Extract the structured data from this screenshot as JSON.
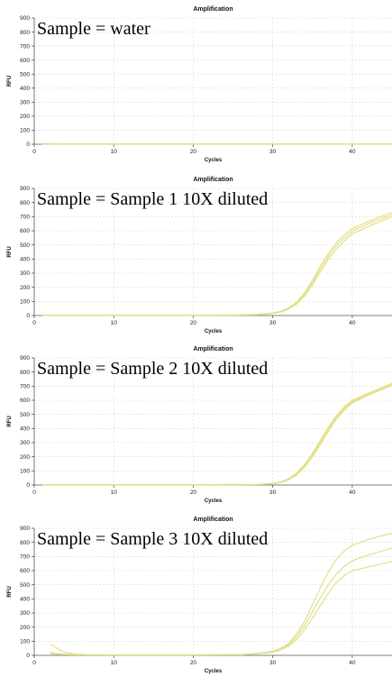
{
  "chart_data": [
    {
      "type": "line",
      "title": "Amplification",
      "annotation": "Sample = water",
      "xlabel": "Cycles",
      "ylabel": "RFU",
      "xlim": [
        0,
        45
      ],
      "ylim": [
        0,
        900
      ],
      "xticks": [
        0,
        10,
        20,
        30,
        40
      ],
      "yticks": [
        0,
        100,
        200,
        300,
        400,
        500,
        600,
        700,
        800,
        900
      ],
      "grid": true,
      "line_color": "#e2e08a",
      "series": [
        {
          "x": [
            1,
            5,
            10,
            15,
            20,
            25,
            30,
            35,
            40,
            45
          ],
          "y": [
            2,
            2,
            2,
            2,
            2,
            2,
            2,
            2,
            2,
            2
          ]
        },
        {
          "x": [
            1,
            5,
            10,
            15,
            20,
            25,
            30,
            35,
            40,
            45
          ],
          "y": [
            4,
            3,
            3,
            3,
            3,
            3,
            3,
            3,
            3,
            3
          ]
        },
        {
          "x": [
            1,
            5,
            10,
            15,
            20,
            25,
            30,
            35,
            40,
            45
          ],
          "y": [
            1,
            1,
            1,
            1,
            1,
            1,
            1,
            1,
            1,
            1
          ]
        }
      ]
    },
    {
      "type": "line",
      "title": "Amplification",
      "annotation": "Sample = Sample 1 10X diluted",
      "xlabel": "Cycles",
      "ylabel": "RFU",
      "xlim": [
        0,
        45
      ],
      "ylim": [
        0,
        900
      ],
      "xticks": [
        0,
        10,
        20,
        30,
        40
      ],
      "yticks": [
        0,
        100,
        200,
        300,
        400,
        500,
        600,
        700,
        800,
        900
      ],
      "grid": true,
      "line_color": "#e2e08a",
      "series": [
        {
          "x": [
            1,
            10,
            20,
            26,
            28,
            30,
            31,
            32,
            33,
            34,
            35,
            36,
            37,
            38,
            39,
            40,
            42,
            45
          ],
          "y": [
            2,
            2,
            2,
            4,
            8,
            18,
            30,
            55,
            95,
            160,
            250,
            350,
            440,
            515,
            570,
            615,
            665,
            730
          ]
        },
        {
          "x": [
            1,
            10,
            20,
            26,
            28,
            30,
            31,
            32,
            33,
            34,
            35,
            36,
            37,
            38,
            39,
            40,
            42,
            45
          ],
          "y": [
            2,
            2,
            2,
            4,
            7,
            16,
            27,
            50,
            88,
            150,
            235,
            330,
            420,
            495,
            550,
            598,
            650,
            715
          ]
        },
        {
          "x": [
            1,
            10,
            20,
            26,
            28,
            30,
            31,
            32,
            33,
            34,
            35,
            36,
            37,
            38,
            39,
            40,
            42,
            45
          ],
          "y": [
            2,
            2,
            2,
            3,
            6,
            14,
            24,
            45,
            80,
            138,
            218,
            308,
            398,
            472,
            528,
            578,
            630,
            700
          ]
        }
      ]
    },
    {
      "type": "line",
      "title": "Amplification",
      "annotation": "Sample = Sample 2 10X diluted",
      "xlabel": "Cycles",
      "ylabel": "RFU",
      "xlim": [
        0,
        45
      ],
      "ylim": [
        0,
        900
      ],
      "xticks": [
        0,
        10,
        20,
        30,
        40
      ],
      "yticks": [
        0,
        100,
        200,
        300,
        400,
        500,
        600,
        700,
        800,
        900
      ],
      "grid": true,
      "line_color": "#e2e08a",
      "series": [
        {
          "x": [
            1,
            10,
            20,
            28,
            30,
            31,
            32,
            33,
            34,
            35,
            36,
            37,
            38,
            39,
            40,
            42,
            45
          ],
          "y": [
            2,
            2,
            2,
            4,
            10,
            22,
            45,
            85,
            145,
            225,
            315,
            410,
            490,
            555,
            600,
            650,
            720
          ]
        },
        {
          "x": [
            1,
            10,
            20,
            28,
            30,
            31,
            32,
            33,
            34,
            35,
            36,
            37,
            38,
            39,
            40,
            42,
            45
          ],
          "y": [
            2,
            2,
            2,
            4,
            9,
            20,
            40,
            78,
            135,
            212,
            300,
            395,
            478,
            542,
            590,
            642,
            712
          ]
        },
        {
          "x": [
            1,
            10,
            20,
            28,
            30,
            31,
            32,
            33,
            34,
            35,
            36,
            37,
            38,
            39,
            40,
            42,
            45
          ],
          "y": [
            2,
            2,
            2,
            3,
            8,
            18,
            36,
            70,
            125,
            200,
            287,
            380,
            465,
            530,
            580,
            635,
            705
          ]
        }
      ]
    },
    {
      "type": "line",
      "title": "Amplification",
      "annotation": "Sample = Sample 3 10X diluted",
      "xlabel": "Cycles",
      "ylabel": "RFU",
      "xlim": [
        0,
        45
      ],
      "ylim": [
        0,
        900
      ],
      "xticks": [
        0,
        10,
        20,
        30,
        40
      ],
      "yticks": [
        0,
        100,
        200,
        300,
        400,
        500,
        600,
        700,
        800,
        900
      ],
      "grid": true,
      "line_color": "#e2e08a",
      "series": [
        {
          "x": [
            2,
            2.5,
            3,
            3.5,
            4,
            5,
            7,
            10,
            20,
            26,
            28,
            30,
            31,
            32,
            33,
            34,
            35,
            36,
            37,
            38,
            39,
            40,
            42,
            45
          ],
          "y": [
            80,
            65,
            45,
            30,
            20,
            10,
            4,
            3,
            3,
            6,
            14,
            30,
            50,
            85,
            150,
            240,
            360,
            480,
            590,
            680,
            740,
            780,
            820,
            865
          ]
        },
        {
          "x": [
            2,
            3,
            4,
            5,
            7,
            10,
            20,
            26,
            28,
            30,
            31,
            32,
            33,
            34,
            35,
            36,
            37,
            38,
            39,
            40,
            42,
            45
          ],
          "y": [
            20,
            12,
            8,
            5,
            3,
            3,
            3,
            5,
            12,
            26,
            45,
            75,
            130,
            210,
            310,
            410,
            500,
            575,
            630,
            670,
            710,
            760
          ]
        },
        {
          "x": [
            2,
            3,
            4,
            5,
            7,
            10,
            20,
            26,
            28,
            30,
            31,
            32,
            33,
            34,
            35,
            36,
            37,
            38,
            39,
            40,
            42,
            45
          ],
          "y": [
            10,
            7,
            5,
            4,
            3,
            3,
            3,
            4,
            10,
            22,
            38,
            65,
            112,
            180,
            265,
            355,
            440,
            515,
            565,
            600,
            625,
            665
          ]
        }
      ]
    }
  ]
}
